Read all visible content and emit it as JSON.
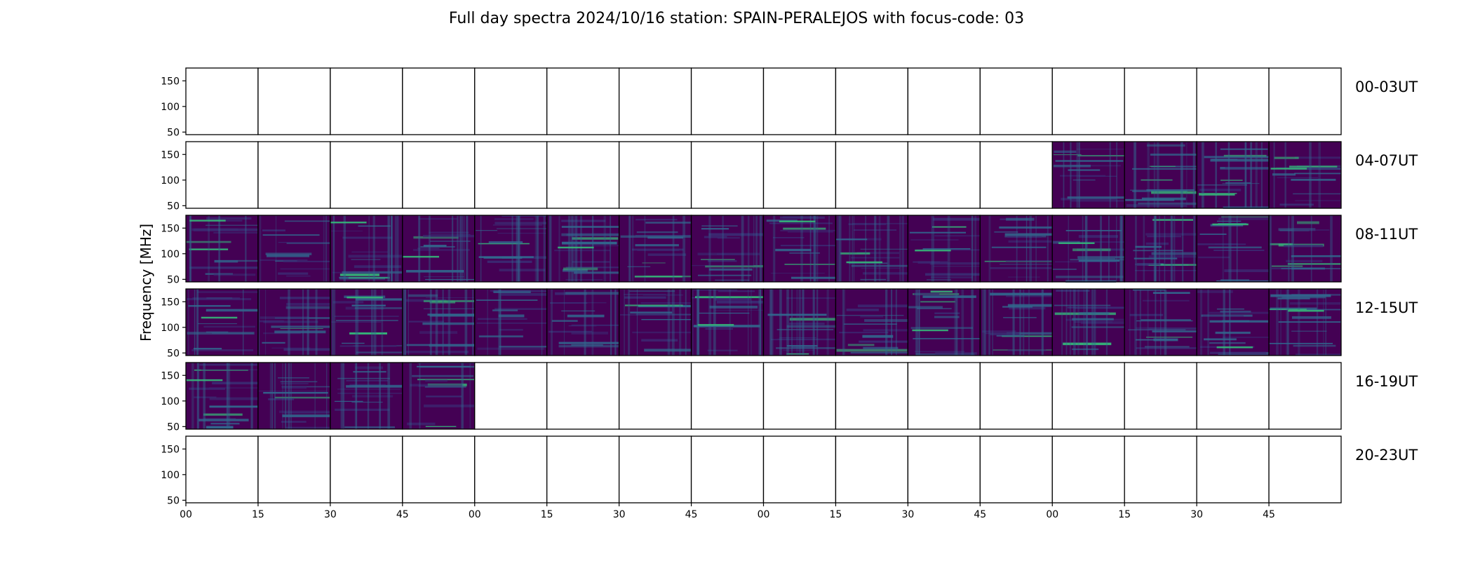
{
  "chart_data": {
    "type": "heatmap",
    "title": "Full day spectra 2024/10/16 station: SPAIN-PERALEJOS with focus-code: 03",
    "xlabel": "",
    "ylabel": "Frequency [MHz]",
    "colormap": "viridis",
    "colorscale_note": "",
    "panel_minutes": 15,
    "panels_per_row": 16,
    "ylim": [
      45,
      175
    ],
    "yticks": [
      50,
      100,
      150
    ],
    "ytick_labels": [
      "50",
      "100",
      "150"
    ],
    "xtick_labels": [
      "00",
      "15",
      "30",
      "45",
      "00",
      "15",
      "30",
      "45",
      "00",
      "15",
      "30",
      "45",
      "00",
      "15",
      "30",
      "45"
    ],
    "rows": [
      {
        "label": "00-03UT",
        "panels_with_data": []
      },
      {
        "label": "04-07UT",
        "panels_with_data": [
          12,
          13,
          14,
          15
        ]
      },
      {
        "label": "08-11UT",
        "panels_with_data": [
          0,
          1,
          2,
          3,
          4,
          5,
          6,
          7,
          8,
          9,
          10,
          11,
          12,
          13,
          14,
          15
        ]
      },
      {
        "label": "12-15UT",
        "panels_with_data": [
          0,
          1,
          2,
          3,
          4,
          5,
          6,
          7,
          8,
          9,
          10,
          11,
          12,
          13,
          14,
          15
        ]
      },
      {
        "label": "16-19UT",
        "panels_with_data": [
          0,
          1,
          2,
          3
        ]
      },
      {
        "label": "20-23UT",
        "panels_with_data": []
      }
    ],
    "grid": false,
    "legend": "none"
  },
  "colors": {
    "background": "#ffffff",
    "frame": "#000000",
    "viridis_low": "#440154",
    "viridis_midlow": "#3b2a73",
    "viridis_mid": "#31688e",
    "viridis_high": "#35b779"
  }
}
